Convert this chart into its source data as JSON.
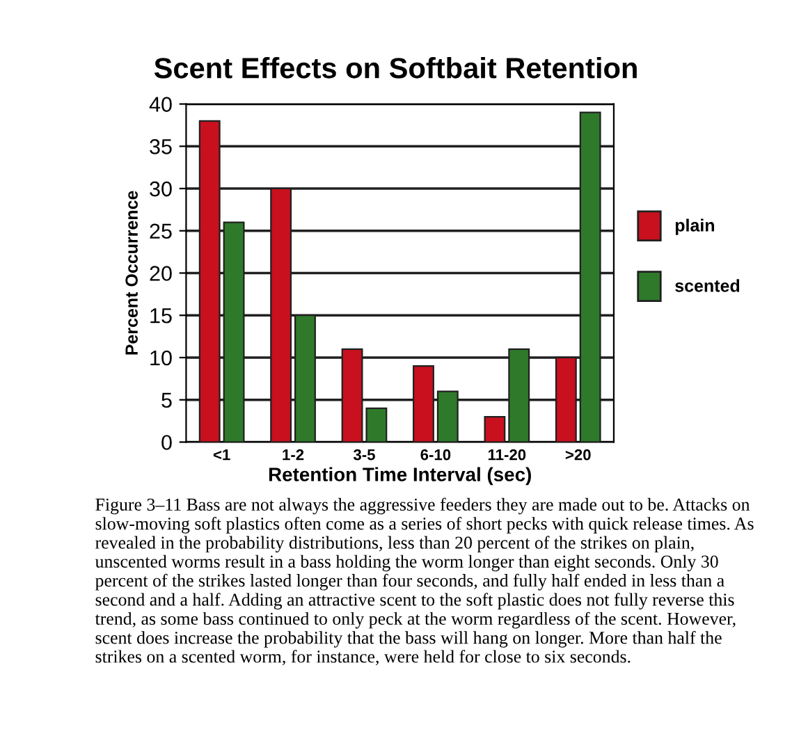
{
  "chart_data": {
    "type": "bar",
    "title": "Scent Effects on Softbait Retention",
    "xlabel": "Retention Time Interval (sec)",
    "ylabel": "Percent Occurrence",
    "categories": [
      "<1",
      "1-2",
      "3-5",
      "6-10",
      "11-20",
      ">20"
    ],
    "series": [
      {
        "name": "plain",
        "color": "#c8101e",
        "values": [
          38,
          30,
          11,
          9,
          3,
          10
        ]
      },
      {
        "name": "scented",
        "color": "#2e7a2a",
        "values": [
          26,
          15,
          4,
          6,
          11,
          39
        ]
      }
    ],
    "ylim": [
      0,
      40
    ],
    "yticks": [
      0,
      5,
      10,
      15,
      20,
      25,
      30,
      35,
      40
    ],
    "grid": "y",
    "legend": "right",
    "annotations": [
      "Figure 3–11 Bass are not always the aggressive feeders they are made out to be. Attacks on slow-moving soft plastics often come as a series of short pecks with quick release times. As revealed in the probability distributions, less than 20 percent of the strikes on plain, unscented worms result in a bass holding the worm longer than eight seconds. Only 30 percent of the strikes lasted longer than four seconds, and fully half ended in less than a second and a half. Adding an attractive scent to the soft plastic does not fully reverse this trend, as some bass continued to only peck at the worm regardless of the scent. However, scent does increase the probability that the bass will hang on longer. More than half the strikes on a scented worm, for instance, were held for close to six seconds."
    ]
  }
}
